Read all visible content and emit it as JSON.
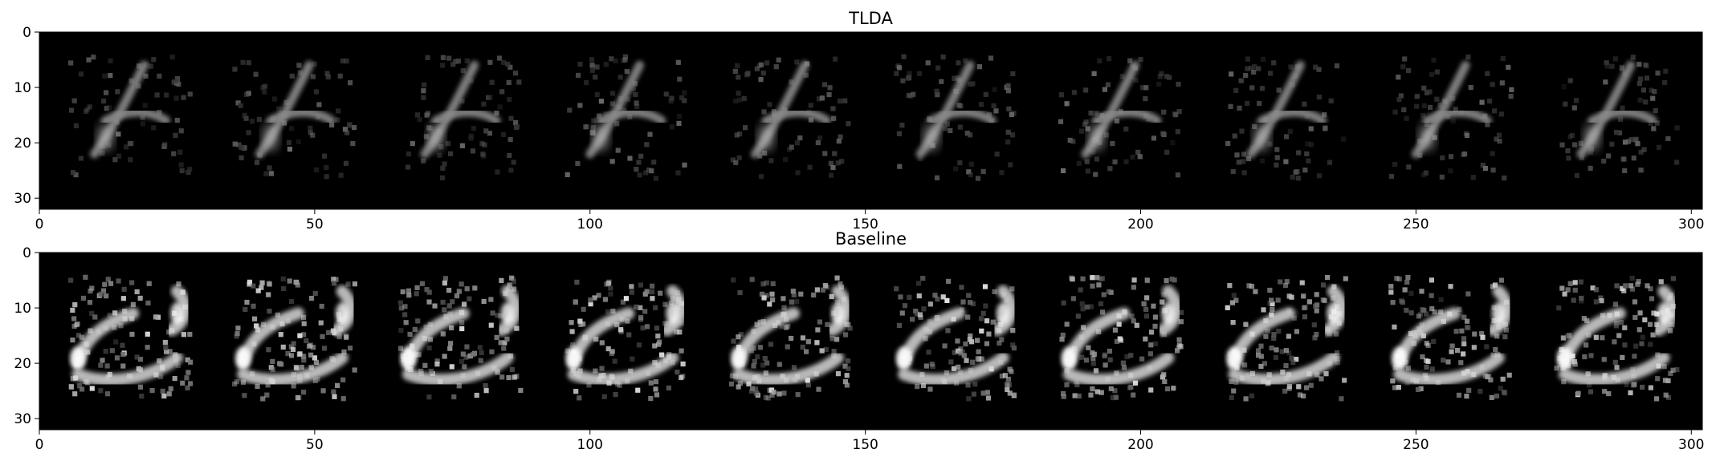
{
  "chart_data": [
    {
      "type": "heatmap",
      "title": "TLDA",
      "colormap": "gray",
      "xlim": [
        0,
        302
      ],
      "ylim": [
        32,
        0
      ],
      "xticks": [
        0,
        50,
        100,
        150,
        200,
        250,
        300
      ],
      "yticks": [
        0,
        10,
        20,
        30
      ],
      "grid": false,
      "tile_count": 10,
      "tile_size": [
        28,
        28
      ],
      "tile_spacing": 30
    },
    {
      "type": "heatmap",
      "title": "Baseline",
      "colormap": "gray",
      "xlim": [
        0,
        302
      ],
      "ylim": [
        32,
        0
      ],
      "xticks": [
        0,
        50,
        100,
        150,
        200,
        250,
        300
      ],
      "yticks": [
        0,
        10,
        20,
        30
      ],
      "grid": false,
      "tile_count": 10,
      "tile_size": [
        28,
        28
      ],
      "tile_spacing": 30
    }
  ]
}
